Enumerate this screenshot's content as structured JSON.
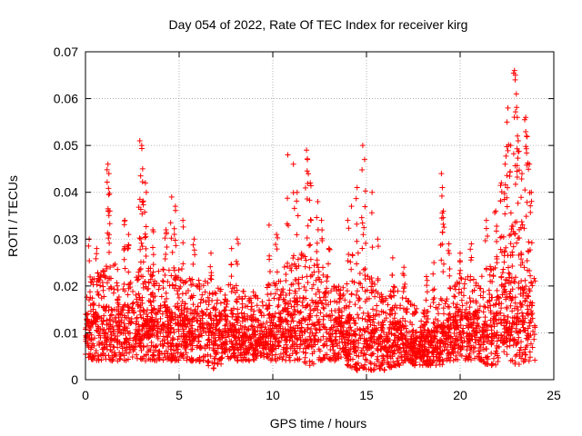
{
  "chart_data": {
    "type": "scatter",
    "title": "Day 054 of 2022, Rate Of TEC Index for receiver kirg",
    "xlabel": "GPS time / hours",
    "ylabel": "ROTI / TECUs",
    "xlim": [
      0,
      25
    ],
    "ylim": [
      0,
      0.07
    ],
    "x_ticks": [
      "0",
      "5",
      "10",
      "15",
      "20",
      "25"
    ],
    "y_ticks": [
      "0",
      "0.01",
      "0.02",
      "0.03",
      "0.04",
      "0.05",
      "0.06",
      "0.07"
    ],
    "grid": true,
    "marker": "+",
    "color": "#ff0000",
    "series": [
      {
        "envelope": {
          "x": [
            0.0,
            0.5,
            1.0,
            1.5,
            2.0,
            2.5,
            3.0,
            3.5,
            4.0,
            4.5,
            5.0,
            5.5,
            6.0,
            6.5,
            7.0,
            7.5,
            8.0,
            8.5,
            9.0,
            9.4,
            9.7,
            10.0,
            10.5,
            11.0,
            11.5,
            12.0,
            12.5,
            13.0,
            13.5,
            14.0,
            14.5,
            15.0,
            15.5,
            16.0,
            16.5,
            17.0,
            17.5,
            18.0,
            18.5,
            19.0,
            19.5,
            20.0,
            20.5,
            21.0,
            21.5,
            22.0,
            22.5,
            23.0,
            23.5,
            24.0
          ],
          "low": [
            0.005,
            0.004,
            0.004,
            0.004,
            0.004,
            0.004,
            0.004,
            0.004,
            0.004,
            0.004,
            0.004,
            0.004,
            0.004,
            0.003,
            0.002,
            0.004,
            0.004,
            0.004,
            0.004,
            0.005,
            0.004,
            0.004,
            0.004,
            0.004,
            0.004,
            0.003,
            0.004,
            0.004,
            0.004,
            0.003,
            0.002,
            0.002,
            0.002,
            0.002,
            0.003,
            0.003,
            0.003,
            0.003,
            0.003,
            0.003,
            0.004,
            0.004,
            0.004,
            0.004,
            0.003,
            0.003,
            0.004,
            0.003,
            0.004,
            0.004
          ],
          "base": [
            0.02,
            0.022,
            0.024,
            0.025,
            0.024,
            0.024,
            0.024,
            0.024,
            0.024,
            0.024,
            0.024,
            0.023,
            0.022,
            0.022,
            0.022,
            0.021,
            0.02,
            0.02,
            0.019,
            0.017,
            0.02,
            0.022,
            0.024,
            0.026,
            0.027,
            0.027,
            0.025,
            0.024,
            0.02,
            0.021,
            0.023,
            0.023,
            0.02,
            0.019,
            0.02,
            0.018,
            0.016,
            0.015,
            0.016,
            0.018,
            0.02,
            0.022,
            0.022,
            0.022,
            0.024,
            0.028,
            0.032,
            0.034,
            0.032,
            0.024
          ]
        },
        "spikes": [
          [
            0.2,
            0.03
          ],
          [
            0.6,
            0.028
          ],
          [
            1.2,
            0.046
          ],
          [
            1.25,
            0.044
          ],
          [
            1.3,
            0.036
          ],
          [
            2.1,
            0.034
          ],
          [
            2.3,
            0.031
          ],
          [
            2.9,
            0.051
          ],
          [
            3.0,
            0.05
          ],
          [
            3.05,
            0.045
          ],
          [
            3.2,
            0.042
          ],
          [
            3.25,
            0.04
          ],
          [
            3.6,
            0.032
          ],
          [
            4.3,
            0.032
          ],
          [
            4.6,
            0.039
          ],
          [
            4.8,
            0.037
          ],
          [
            5.2,
            0.034
          ],
          [
            5.8,
            0.03
          ],
          [
            6.7,
            0.027
          ],
          [
            7.8,
            0.028
          ],
          [
            8.1,
            0.03
          ],
          [
            9.8,
            0.033
          ],
          [
            10.2,
            0.031
          ],
          [
            10.8,
            0.048
          ],
          [
            11.1,
            0.046
          ],
          [
            11.3,
            0.04
          ],
          [
            11.8,
            0.049
          ],
          [
            11.85,
            0.047
          ],
          [
            12.0,
            0.042
          ],
          [
            12.4,
            0.038
          ],
          [
            12.6,
            0.034
          ],
          [
            13.0,
            0.028
          ],
          [
            14.0,
            0.034
          ],
          [
            14.2,
            0.037
          ],
          [
            14.5,
            0.041
          ],
          [
            14.8,
            0.05
          ],
          [
            14.9,
            0.047
          ],
          [
            15.3,
            0.04
          ],
          [
            15.6,
            0.03
          ],
          [
            16.4,
            0.026
          ],
          [
            17.0,
            0.024
          ],
          [
            18.2,
            0.022
          ],
          [
            18.6,
            0.025
          ],
          [
            19.0,
            0.044
          ],
          [
            19.05,
            0.041
          ],
          [
            19.1,
            0.036
          ],
          [
            19.4,
            0.029
          ],
          [
            20.0,
            0.027
          ],
          [
            20.6,
            0.029
          ],
          [
            21.4,
            0.034
          ],
          [
            21.9,
            0.036
          ],
          [
            22.2,
            0.042
          ],
          [
            22.4,
            0.046
          ],
          [
            22.5,
            0.055
          ],
          [
            22.55,
            0.058
          ],
          [
            22.7,
            0.05
          ],
          [
            22.9,
            0.066
          ],
          [
            22.95,
            0.065
          ],
          [
            23.0,
            0.061
          ],
          [
            23.05,
            0.056
          ],
          [
            23.1,
            0.051
          ],
          [
            23.3,
            0.044
          ],
          [
            23.5,
            0.056
          ],
          [
            23.55,
            0.052
          ],
          [
            23.7,
            0.046
          ],
          [
            23.8,
            0.04
          ]
        ]
      }
    ]
  }
}
